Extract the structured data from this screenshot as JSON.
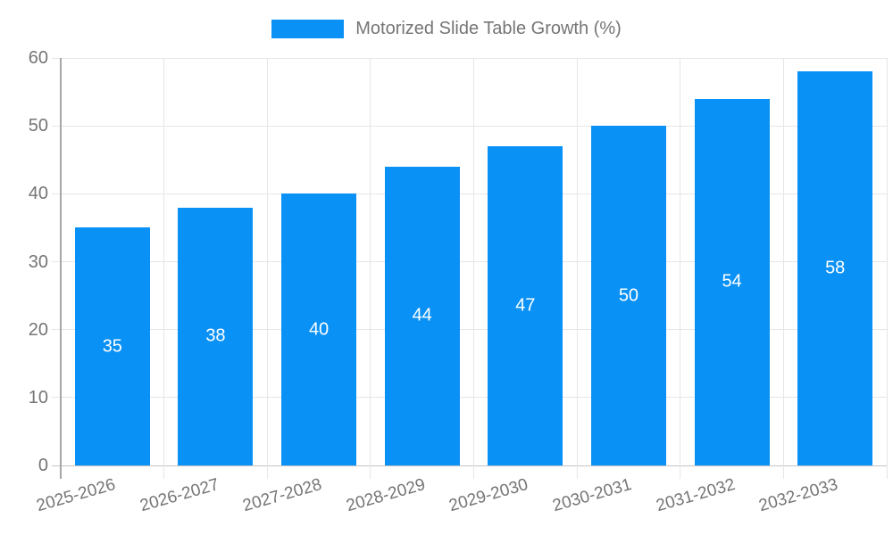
{
  "legend": {
    "label": "Motorized Slide Table Growth (%)"
  },
  "chart_data": {
    "type": "bar",
    "title": "Motorized Slide Table Growth (%)",
    "series_name": "Motorized Slide Table Growth (%)",
    "categories": [
      "2025-2026",
      "2026-2027",
      "2027-2028",
      "2028-2029",
      "2029-2030",
      "2030-2031",
      "2031-2032",
      "2032-2033"
    ],
    "values": [
      35,
      38,
      40,
      44,
      47,
      50,
      54,
      58
    ],
    "value_labels": [
      "35",
      "38",
      "40",
      "44",
      "47",
      "50",
      "54",
      "58"
    ],
    "xlabel": "",
    "ylabel": "",
    "ylim": [
      0,
      60
    ],
    "yticks": [
      0,
      10,
      20,
      30,
      40,
      50,
      60
    ],
    "grid": "on",
    "legend_position": "top-center",
    "x_label_rotation_deg": -16,
    "colors": {
      "bar": "#0a91f5",
      "bar_value_text": "#ffffff",
      "grid_line": "#e6e6e6",
      "zero_line": "#c4c4c4",
      "y_axis_line": "#a6a6a6",
      "tick_text": "#757575",
      "legend_text": "#757575"
    }
  }
}
